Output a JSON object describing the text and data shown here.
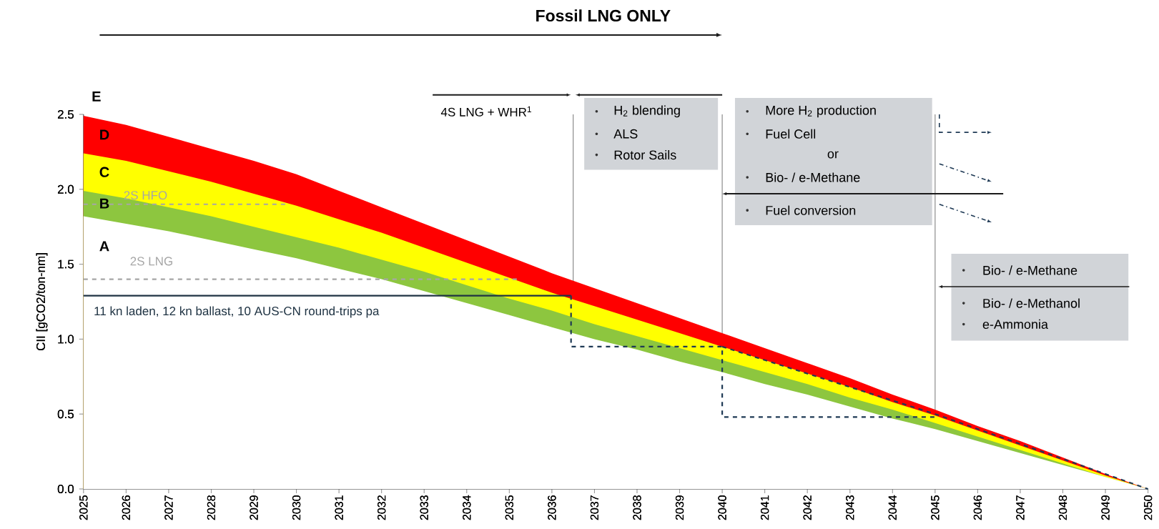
{
  "chart_data": {
    "type": "area",
    "stacked": true,
    "ylabel": "CII [gCO2/ton-nm]",
    "x": [
      2025,
      2026,
      2027,
      2028,
      2029,
      2030,
      2031,
      2032,
      2033,
      2034,
      2035,
      2036,
      2037,
      2038,
      2039,
      2040,
      2041,
      2042,
      2043,
      2044,
      2045,
      2046,
      2047,
      2048,
      2049,
      2050
    ],
    "series": [
      {
        "name": "A",
        "color": "#ffffff",
        "values": [
          1.82,
          1.77,
          1.72,
          1.66,
          1.6,
          1.54,
          1.47,
          1.4,
          1.32,
          1.24,
          1.16,
          1.08,
          1.0,
          0.93,
          0.85,
          0.78,
          0.7,
          0.63,
          0.55,
          0.47,
          0.4,
          0.32,
          0.24,
          0.16,
          0.08,
          0
        ]
      },
      {
        "name": "B",
        "color": "#8dc63f",
        "values": [
          0.17,
          0.17,
          0.16,
          0.16,
          0.15,
          0.14,
          0.14,
          0.13,
          0.13,
          0.12,
          0.11,
          0.11,
          0.1,
          0.09,
          0.09,
          0.08,
          0.08,
          0.07,
          0.06,
          0.06,
          0.04,
          0.03,
          0.02,
          0.01,
          0,
          0
        ]
      },
      {
        "name": "C",
        "color": "#ffff00",
        "values": [
          0.25,
          0.25,
          0.24,
          0.23,
          0.22,
          0.21,
          0.19,
          0.18,
          0.16,
          0.15,
          0.14,
          0.12,
          0.12,
          0.11,
          0.1,
          0.09,
          0.08,
          0.07,
          0.07,
          0.05,
          0.05,
          0.04,
          0.03,
          0.02,
          0.01,
          0
        ]
      },
      {
        "name": "D",
        "color": "#ff0000",
        "values": [
          0.25,
          0.24,
          0.23,
          0.22,
          0.22,
          0.21,
          0.19,
          0.17,
          0.16,
          0.15,
          0.14,
          0.13,
          0.12,
          0.11,
          0.1,
          0.09,
          0.08,
          0.07,
          0.06,
          0.05,
          0.04,
          0.03,
          0.03,
          0.02,
          0.01,
          0
        ]
      },
      {
        "name": "2S HFO",
        "type": "line",
        "color": "#a6a6a6",
        "line_style": "dashed",
        "x": [
          2025,
          2029.8
        ],
        "values": [
          1.9,
          1.9
        ]
      },
      {
        "name": "2S LNG",
        "type": "line",
        "color": "#a6a6a6",
        "line_style": "dashed",
        "x": [
          2025,
          2035.2
        ],
        "values": [
          1.4,
          1.4
        ]
      },
      {
        "name": "11 kn laden, 12 kn ballast, 10 AUS-CN round-trips pa",
        "type": "line",
        "color": "#1f3343",
        "line_style": "solid",
        "x": [
          2025,
          2036.45
        ],
        "values": [
          1.29,
          1.29
        ]
      },
      {
        "type": "line",
        "color": "#1f3a55",
        "line_style": "dashed",
        "x": [
          2036.45,
          2036.45,
          2040,
          2040,
          2045
        ],
        "values": [
          1.29,
          0.95,
          0.95,
          0.48,
          0.48
        ]
      },
      {
        "type": "line",
        "color": "#1f3a55",
        "line_style": "dashed",
        "x": [
          2040,
          2045,
          2050
        ],
        "values": [
          0.95,
          0.5,
          0
        ]
      }
    ],
    "xlim": [
      2025,
      2050
    ],
    "xticks": [
      2025,
      2026,
      2027,
      2028,
      2029,
      2030,
      2031,
      2032,
      2033,
      2034,
      2035,
      2036,
      2037,
      2038,
      2039,
      2040,
      2041,
      2042,
      2043,
      2044,
      2045,
      2046,
      2047,
      2048,
      2049,
      2050
    ],
    "ylim": [
      0,
      2.5
    ],
    "yticks": [
      {
        "value": 0,
        "label": "0.0"
      },
      {
        "value": 0.5,
        "label": "0.5"
      },
      {
        "value": 1,
        "label": "1.0"
      },
      {
        "value": 1.5,
        "label": "1.5"
      },
      {
        "value": 2,
        "label": "2.0"
      },
      {
        "value": 2.5,
        "label": "2.5"
      }
    ],
    "ref_lines": [
      {
        "axis": "x",
        "value": 2036.5,
        "color": "#8c8c8c"
      },
      {
        "axis": "x",
        "value": 2040,
        "color": "#8c8c8c"
      },
      {
        "axis": "x",
        "value": 2045,
        "color": "#8c8c8c"
      }
    ],
    "annotations": [
      "Fossil LNG ONLY",
      "4S LNG + WHR$^{1}$",
      "H$_{2}$ blending",
      "ALS",
      "Rotor Sails",
      "More H$_{2}$ production",
      "Fuel Cell",
      "or",
      "Bio- / e-Methane",
      "Fuel conversion",
      "Bio- / e-Methane",
      "Bio- / e-Methanol",
      "e-Ammonia",
      "E"
    ]
  }
}
